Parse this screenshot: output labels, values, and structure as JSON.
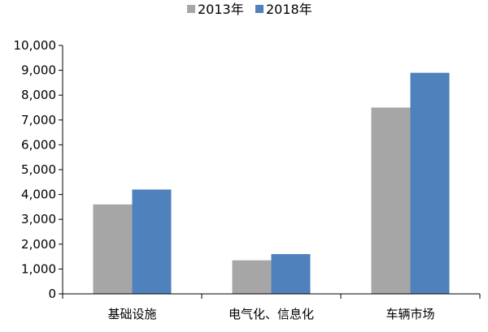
{
  "chart_data": {
    "type": "bar",
    "categories": [
      "基础设施",
      "电气化、信息化",
      "车辆市场"
    ],
    "series": [
      {
        "name": "2013年",
        "values": [
          3600,
          1350,
          7500
        ],
        "color": "#a6a6a6"
      },
      {
        "name": "2018年",
        "values": [
          4200,
          1600,
          8900
        ],
        "color": "#4f81bd"
      }
    ],
    "ylim": [
      0,
      10000
    ],
    "yticks": [
      0,
      1000,
      2000,
      3000,
      4000,
      5000,
      6000,
      7000,
      8000,
      9000,
      10000
    ],
    "ytick_labels": [
      "0",
      "1,000",
      "2,000",
      "3,000",
      "4,000",
      "5,000",
      "6,000",
      "7,000",
      "8,000",
      "9,000",
      "10,000"
    ],
    "legend_position": "top",
    "grid": false,
    "title": "",
    "xlabel": "",
    "ylabel": ""
  }
}
